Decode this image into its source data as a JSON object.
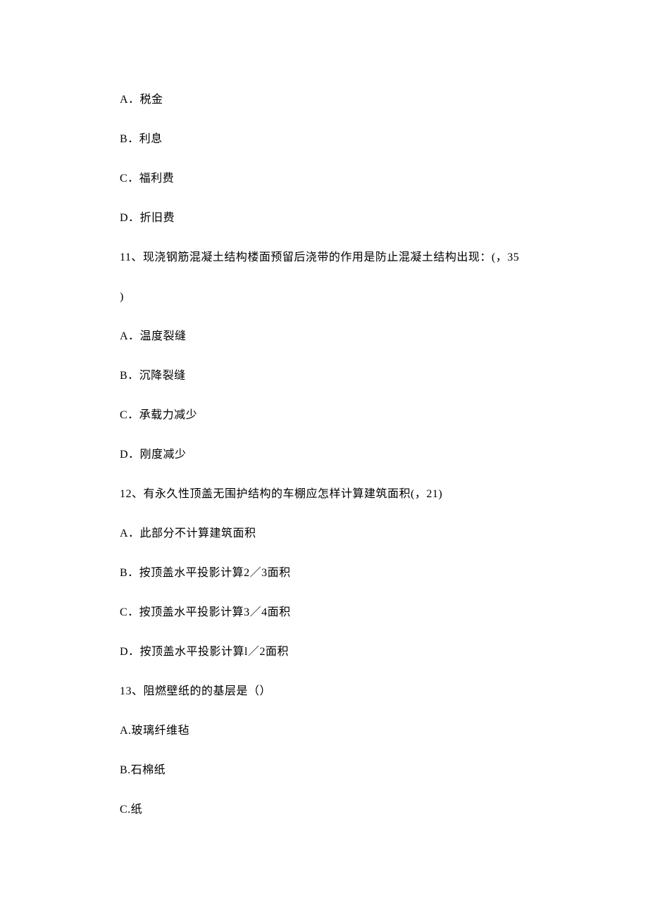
{
  "lines": [
    "A．税金",
    "B．利息",
    "C．福利费",
    "D．折旧费",
    "11、现浇钢筋混凝土结构楼面预留后浇带的作用是防止混凝土结构出现：(，35",
    ")",
    "A．温度裂缝",
    "B．沉降裂缝",
    "C．承载力减少",
    "D．刚度减少",
    "12、有永久性顶盖无围护结构的车棚应怎样计算建筑面积(，21)",
    "A．此部分不计算建筑面积",
    "B．按顶盖水平投影计算2／3面积",
    "C．按顶盖水平投影计算3／4面积",
    "D．按顶盖水平投影计算l／2面积",
    "13、阻燃壁纸的的基层是（）",
    "A.玻璃纤维毡",
    "B.石棉纸",
    "C.纸"
  ]
}
